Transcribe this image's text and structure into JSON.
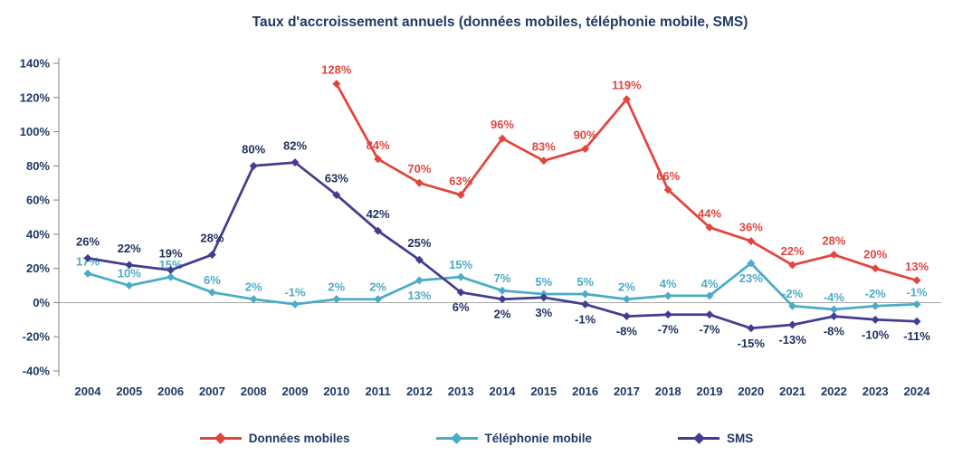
{
  "title": "Taux d'accroissement annuels (données mobiles, téléphonie mobile, SMS)",
  "chart_data": {
    "type": "line",
    "x": [
      2004,
      2005,
      2006,
      2007,
      2008,
      2009,
      2010,
      2011,
      2012,
      2013,
      2014,
      2015,
      2016,
      2017,
      2018,
      2019,
      2020,
      2021,
      2022,
      2023,
      2024
    ],
    "series": [
      {
        "name": "Données mobiles",
        "color": "#E2453E",
        "values": [
          null,
          null,
          null,
          null,
          null,
          null,
          128,
          84,
          70,
          63,
          96,
          83,
          90,
          119,
          66,
          44,
          36,
          22,
          28,
          20,
          13
        ]
      },
      {
        "name": "Téléphonie mobile",
        "color": "#4BACC6",
        "values": [
          17,
          10,
          15,
          6,
          2,
          -1,
          2,
          2,
          13,
          15,
          7,
          5,
          5,
          2,
          4,
          4,
          23,
          -2,
          -4,
          -2,
          -1
        ]
      },
      {
        "name": "SMS",
        "color": "#433D91",
        "label_color": "#1F3161",
        "values": [
          26,
          22,
          19,
          28,
          80,
          82,
          63,
          42,
          25,
          6,
          2,
          3,
          -1,
          -8,
          -7,
          -7,
          -15,
          -13,
          -8,
          -10,
          -11
        ]
      }
    ],
    "ylim": [
      -40,
      140
    ],
    "ytick_step": 20,
    "ytick_suffix": "%",
    "xlabel": "",
    "ylabel": "",
    "grid": "zero-line-only",
    "legend_position": "bottom",
    "label_format": "percent",
    "title": "Taux d'accroissement annuels (données mobiles, téléphonie mobile, SMS)"
  },
  "colors": {
    "title_text": "#1F3864",
    "axis_text": "#1F3864",
    "axis_line": "#7F7F7F",
    "zero_line": "#A6A6A6",
    "background": "#FFFFFF"
  }
}
